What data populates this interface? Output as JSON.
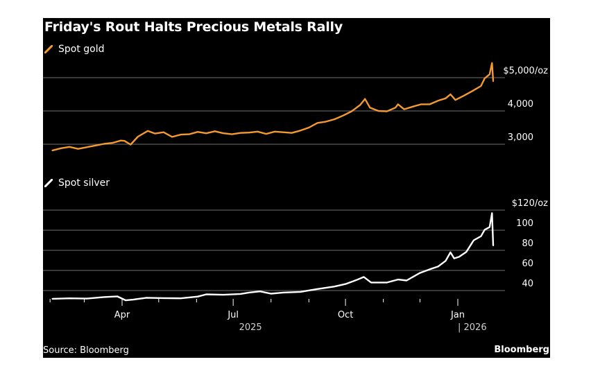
{
  "chart_data": [
    {
      "type": "line",
      "title": "Friday's Rout Halts Precious Metals Rally",
      "panel": "top",
      "legend": [
        {
          "name": "Spot gold",
          "color": "#f59a2f"
        }
      ],
      "xlabel": "",
      "ylabel": "",
      "y_unit": "$/oz",
      "ylim": [
        2700,
        5500
      ],
      "yticks": [
        3000,
        4000,
        5000
      ],
      "ytick_labels": [
        "3,000",
        "4,000",
        "$5,000/oz"
      ],
      "grid": true,
      "series": [
        {
          "name": "Spot gold",
          "color": "#f59a2f",
          "x": [
            "2025-02-03",
            "2025-02-10",
            "2025-02-17",
            "2025-02-24",
            "2025-03-03",
            "2025-03-10",
            "2025-03-17",
            "2025-03-24",
            "2025-03-31",
            "2025-04-03",
            "2025-04-08",
            "2025-04-14",
            "2025-04-22",
            "2025-04-28",
            "2025-05-05",
            "2025-05-12",
            "2025-05-19",
            "2025-05-26",
            "2025-06-02",
            "2025-06-09",
            "2025-06-16",
            "2025-06-23",
            "2025-06-30",
            "2025-07-07",
            "2025-07-14",
            "2025-07-21",
            "2025-07-28",
            "2025-08-04",
            "2025-08-11",
            "2025-08-18",
            "2025-08-25",
            "2025-09-01",
            "2025-09-08",
            "2025-09-15",
            "2025-09-22",
            "2025-09-29",
            "2025-10-06",
            "2025-10-13",
            "2025-10-17",
            "2025-10-21",
            "2025-10-28",
            "2025-11-04",
            "2025-11-11",
            "2025-11-13",
            "2025-11-18",
            "2025-11-25",
            "2025-12-02",
            "2025-12-09",
            "2025-12-16",
            "2025-12-22",
            "2025-12-26",
            "2025-12-30",
            "2026-01-06",
            "2026-01-13",
            "2026-01-20",
            "2026-01-23",
            "2026-01-27",
            "2026-01-29",
            "2026-01-30"
          ],
          "values": [
            2815,
            2880,
            2920,
            2860,
            2910,
            2960,
            3010,
            3040,
            3110,
            3100,
            2990,
            3230,
            3400,
            3320,
            3360,
            3220,
            3290,
            3300,
            3370,
            3330,
            3390,
            3330,
            3300,
            3340,
            3350,
            3380,
            3310,
            3380,
            3360,
            3340,
            3410,
            3500,
            3640,
            3680,
            3750,
            3860,
            3990,
            4180,
            4360,
            4100,
            4000,
            3990,
            4100,
            4200,
            4050,
            4130,
            4200,
            4200,
            4310,
            4380,
            4500,
            4330,
            4460,
            4600,
            4750,
            4980,
            5100,
            5440,
            4900
          ]
        }
      ]
    },
    {
      "type": "line",
      "panel": "bottom",
      "legend": [
        {
          "name": "Spot silver",
          "color": "#ffffff"
        }
      ],
      "xlabel": "",
      "ylabel": "",
      "y_unit": "$/oz",
      "ylim": [
        28,
        120
      ],
      "yticks": [
        40,
        60,
        80,
        100,
        120
      ],
      "ytick_labels": [
        "40",
        "60",
        "80",
        "100",
        "$120/oz"
      ],
      "grid": true,
      "x_tick_labels": [
        "Apr",
        "Jul",
        "Oct",
        "Jan"
      ],
      "x_year_labels": [
        "2025",
        "| 2026"
      ],
      "series": [
        {
          "name": "Spot silver",
          "color": "#ffffff",
          "x": [
            "2025-02-03",
            "2025-02-17",
            "2025-03-03",
            "2025-03-17",
            "2025-03-28",
            "2025-04-04",
            "2025-04-10",
            "2025-04-21",
            "2025-05-05",
            "2025-05-19",
            "2025-06-02",
            "2025-06-09",
            "2025-06-23",
            "2025-07-07",
            "2025-07-14",
            "2025-07-23",
            "2025-08-01",
            "2025-08-11",
            "2025-08-25",
            "2025-09-08",
            "2025-09-22",
            "2025-10-01",
            "2025-10-10",
            "2025-10-16",
            "2025-10-22",
            "2025-11-04",
            "2025-11-13",
            "2025-11-20",
            "2025-12-01",
            "2025-12-10",
            "2025-12-16",
            "2025-12-22",
            "2025-12-26",
            "2025-12-29",
            "2026-01-02",
            "2026-01-08",
            "2026-01-14",
            "2026-01-20",
            "2026-01-23",
            "2026-01-27",
            "2026-01-29",
            "2026-01-30"
          ],
          "values": [
            31.8,
            32.3,
            32.0,
            33.5,
            34.2,
            30.3,
            31.0,
            32.8,
            32.5,
            32.3,
            34.0,
            36.2,
            35.8,
            36.6,
            38.0,
            39.2,
            36.9,
            38.0,
            38.7,
            41.5,
            44.0,
            46.5,
            50.5,
            53.5,
            48.0,
            48.0,
            51.0,
            50.0,
            57.5,
            61.5,
            64.0,
            69.5,
            78.0,
            72.0,
            73.5,
            78.5,
            90.0,
            94.0,
            100.5,
            103.0,
            117.0,
            85.0
          ]
        }
      ]
    }
  ],
  "header": {
    "title": "Friday's Rout Halts Precious Metals Rally"
  },
  "legend": {
    "gold_label": "Spot gold",
    "silver_label": "Spot silver",
    "gold_color": "#f59a2f",
    "silver_color": "#ffffff"
  },
  "x_axis": {
    "start": "2025-02-01",
    "end": "2026-01-31",
    "minor_ticks": [
      "2025-02-01",
      "2025-03-01",
      "2025-04-01",
      "2025-05-01",
      "2025-06-01",
      "2025-07-01",
      "2025-08-01",
      "2025-09-01",
      "2025-10-01",
      "2025-11-01",
      "2025-12-01",
      "2026-01-01"
    ],
    "major_ticks": [
      {
        "date": "2025-04-01",
        "label": "Apr"
      },
      {
        "date": "2025-07-01",
        "label": "Jul"
      },
      {
        "date": "2025-10-01",
        "label": "Oct"
      },
      {
        "date": "2026-01-01",
        "label": "Jan"
      }
    ],
    "year_labels": [
      {
        "date": "2025-07-01",
        "label": "2025"
      },
      {
        "date": "2026-01-01",
        "label": "| 2026"
      }
    ]
  },
  "footer": {
    "source": "Source: Bloomberg",
    "brand": "Bloomberg"
  },
  "colors": {
    "background": "#000000",
    "gridline": "#5a5a5a",
    "text": "#ffffff",
    "gold": "#f59a2f",
    "silver": "#ffffff"
  }
}
